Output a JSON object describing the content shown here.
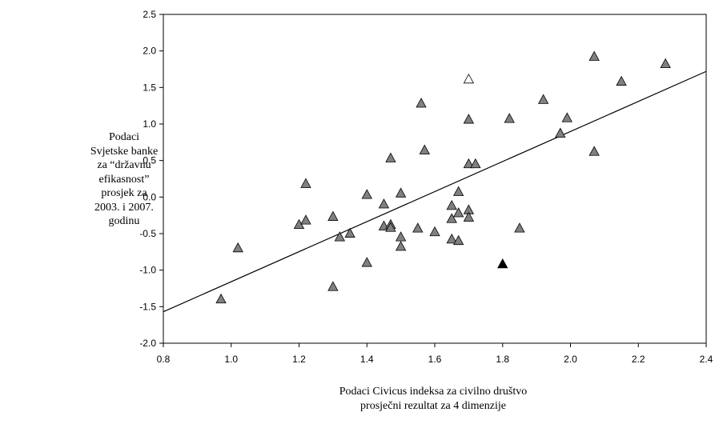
{
  "chart_data": {
    "type": "scatter",
    "title": "",
    "ylabel_lines": [
      "Podaci",
      "Svjetske banke",
      "za “državnu",
      "efikasnost”",
      "prosjek za",
      "2003. i 2007.",
      "godinu"
    ],
    "xlabel_lines": [
      "Podaci Civicus indeksa za civilno društvo",
      "prosječni rezultat za 4 dimenzije"
    ],
    "xlim": [
      0.8,
      2.4
    ],
    "ylim": [
      -2.0,
      2.5
    ],
    "x_ticks": [
      "0.8",
      "1.0",
      "1.2",
      "1.4",
      "1.6",
      "1.8",
      "2.0",
      "2.2",
      "2.4"
    ],
    "y_ticks": [
      "2.5",
      "2.0",
      "1.5",
      "1.0",
      "0.5",
      "0.0",
      "-0.5",
      "-1.0",
      "-1.5",
      "-2.0"
    ],
    "grid": false,
    "colors": {
      "grey_marker": "#808080",
      "open_marker": "#ffffff",
      "black_marker": "#000000",
      "line": "#000000"
    },
    "trend_line": {
      "x": [
        0.8,
        2.4
      ],
      "y": [
        -1.57,
        1.72
      ]
    },
    "series": [
      {
        "marker": "triangle-grey",
        "points": [
          [
            0.97,
            -1.4
          ],
          [
            1.02,
            -0.7
          ],
          [
            1.2,
            -0.38
          ],
          [
            1.22,
            0.18
          ],
          [
            1.22,
            -0.32
          ],
          [
            1.3,
            -0.27
          ],
          [
            1.3,
            -1.23
          ],
          [
            1.32,
            -0.55
          ],
          [
            1.35,
            -0.5
          ],
          [
            1.4,
            0.03
          ],
          [
            1.4,
            -0.9
          ],
          [
            1.45,
            -0.1
          ],
          [
            1.45,
            -0.4
          ],
          [
            1.47,
            0.53
          ],
          [
            1.47,
            -0.38
          ],
          [
            1.47,
            -0.42
          ],
          [
            1.5,
            0.05
          ],
          [
            1.5,
            -0.55
          ],
          [
            1.5,
            -0.68
          ],
          [
            1.55,
            -0.43
          ],
          [
            1.56,
            1.28
          ],
          [
            1.57,
            0.64
          ],
          [
            1.6,
            -0.48
          ],
          [
            1.65,
            -0.12
          ],
          [
            1.65,
            -0.3
          ],
          [
            1.65,
            -0.58
          ],
          [
            1.67,
            0.07
          ],
          [
            1.67,
            -0.22
          ],
          [
            1.67,
            -0.6
          ],
          [
            1.7,
            1.06
          ],
          [
            1.7,
            0.45
          ],
          [
            1.7,
            -0.18
          ],
          [
            1.7,
            -0.28
          ],
          [
            1.72,
            0.45
          ],
          [
            1.82,
            1.07
          ],
          [
            1.85,
            -0.43
          ],
          [
            1.92,
            1.33
          ],
          [
            1.97,
            0.87
          ],
          [
            1.99,
            1.08
          ],
          [
            2.07,
            1.92
          ],
          [
            2.07,
            0.62
          ],
          [
            2.15,
            1.58
          ],
          [
            2.28,
            1.82
          ]
        ]
      },
      {
        "marker": "triangle-open",
        "points": [
          [
            1.7,
            1.61
          ]
        ]
      },
      {
        "marker": "triangle-black",
        "points": [
          [
            1.8,
            -0.92
          ]
        ]
      }
    ]
  }
}
